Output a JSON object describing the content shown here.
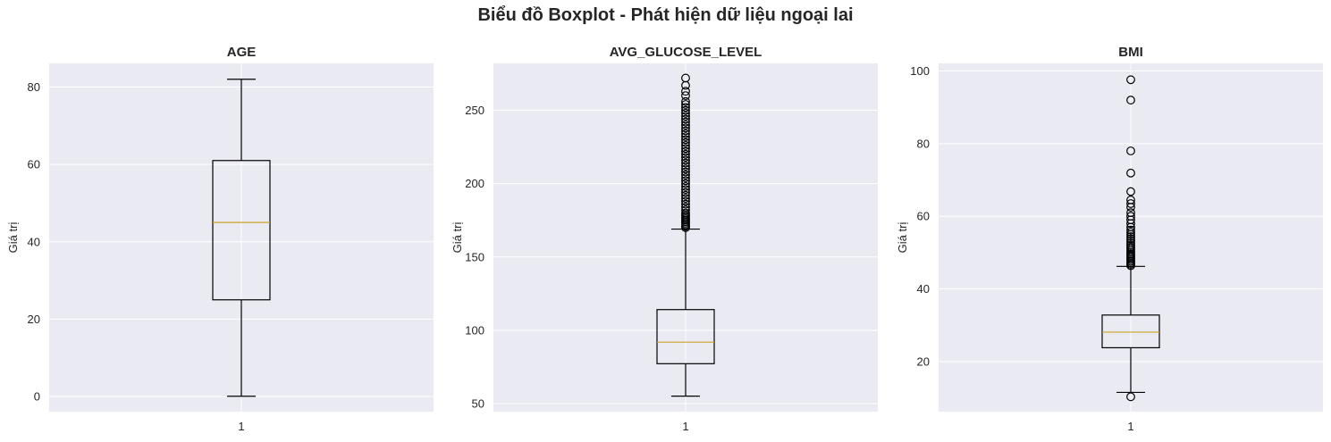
{
  "suptitle": "Biểu đồ Boxplot - Phát hiện dữ liệu ngoại lai",
  "colors": {
    "background": "#eaeaf2",
    "grid": "#ffffff",
    "box": "#000000",
    "median": "#c9a227"
  },
  "chart_data": [
    {
      "type": "boxplot",
      "title": "AGE",
      "ylabel": "Giá trị",
      "xticks": [
        "1"
      ],
      "ylim": [
        -3.9,
        86.1
      ],
      "yticks": [
        0,
        20,
        40,
        60,
        80
      ],
      "grid": true,
      "box": {
        "whisker_low": 0.08,
        "q1": 25,
        "median": 45,
        "q3": 61,
        "whisker_high": 82
      },
      "outliers": []
    },
    {
      "type": "boxplot",
      "title": "AVG_GLUCOSE_LEVEL",
      "ylabel": "Giá trị",
      "xticks": [
        "1"
      ],
      "ylim": [
        44.5,
        282
      ],
      "yticks": [
        50,
        100,
        150,
        200,
        250
      ],
      "grid": true,
      "box": {
        "whisker_low": 55.1,
        "q1": 77.2,
        "median": 91.9,
        "q3": 114.1,
        "whisker_high": 169
      },
      "outliers": [
        170,
        171,
        172,
        173,
        174,
        175,
        176,
        177,
        178,
        179,
        180,
        182,
        184,
        186,
        188,
        190,
        192,
        194,
        196,
        198,
        200,
        202,
        204,
        206,
        208,
        210,
        212,
        214,
        216,
        218,
        220,
        222,
        224,
        226,
        228,
        230,
        232,
        234,
        236,
        238,
        240,
        242,
        244,
        246,
        248,
        250,
        252,
        254,
        256,
        260,
        263,
        267,
        272
      ]
    },
    {
      "type": "boxplot",
      "title": "BMI",
      "ylabel": "Giá trị",
      "xticks": [
        "1"
      ],
      "ylim": [
        6.2,
        102.1
      ],
      "yticks": [
        20,
        40,
        60,
        80,
        100
      ],
      "grid": true,
      "box": {
        "whisker_low": 11.5,
        "q1": 23.8,
        "median": 28.1,
        "q3": 32.8,
        "whisker_high": 46.2
      },
      "outliers": [
        10.3,
        46.4,
        46.8,
        47.2,
        47.6,
        48,
        48.4,
        48.8,
        49.2,
        49.6,
        50,
        50.5,
        51,
        51.5,
        52,
        52.6,
        53.2,
        53.8,
        54.4,
        55,
        55.6,
        56.2,
        57,
        58,
        59,
        60,
        61,
        62.5,
        63.5,
        64.5,
        66.8,
        71.9,
        78,
        92,
        97.6
      ]
    }
  ]
}
